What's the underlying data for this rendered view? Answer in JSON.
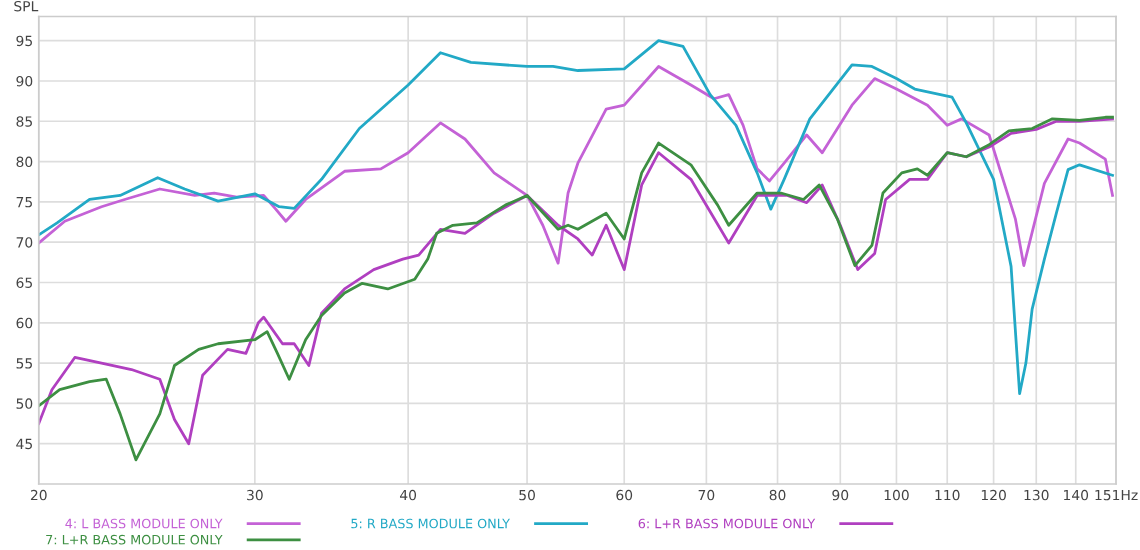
{
  "chart_data": {
    "type": "line",
    "ylabel": "SPL",
    "log": "x",
    "grid": true,
    "legend": "bottom",
    "xlim": [
      20,
      151
    ],
    "ylim": [
      40,
      98
    ],
    "xticks": [
      20,
      30,
      40,
      50,
      60,
      70,
      80,
      90,
      100,
      110,
      120,
      130,
      140,
      {
        "value": 151,
        "label": "151Hz"
      }
    ],
    "yticks": [
      45,
      50,
      55,
      60,
      65,
      70,
      75,
      80,
      85,
      90,
      95
    ],
    "series": [
      {
        "name": "4: L BASS MODULE ONLY",
        "color": "#c462d6",
        "x": [
          20,
          21,
          22.5,
          23.5,
          25.1,
          26.8,
          27.8,
          29,
          30.5,
          31.2,
          31.8,
          33,
          35.5,
          38,
          40,
          42.5,
          44.5,
          47,
          50,
          51.5,
          53,
          54,
          55,
          58,
          60,
          64,
          68,
          71,
          73,
          75,
          77,
          78.8,
          81,
          84.5,
          87,
          92,
          96,
          100,
          106,
          110,
          113,
          119,
          125,
          127,
          132,
          138,
          141,
          148,
          150
        ],
        "values": [
          69.9,
          72.6,
          74.4,
          75.3,
          76.6,
          75.8,
          76.1,
          75.6,
          75.8,
          74.1,
          72.6,
          75.3,
          78.8,
          79.1,
          81.1,
          84.8,
          82.8,
          78.6,
          75.8,
          72.1,
          67.4,
          76.1,
          79.8,
          86.5,
          87,
          91.8,
          89.5,
          87.8,
          88.3,
          84.5,
          79.1,
          77.6,
          79.8,
          83.3,
          81.1,
          87,
          90.3,
          89,
          87,
          84.5,
          85.3,
          83.3,
          72.9,
          67.1,
          77.3,
          82.8,
          82.3,
          80.3,
          75.8
        ]
      },
      {
        "name": "5: R BASS MODULE ONLY",
        "color": "#22a9c6",
        "x": [
          20,
          20.7,
          22,
          23.3,
          25,
          26.3,
          28,
          30,
          31.4,
          32.3,
          34,
          36.5,
          40,
          42.5,
          45,
          50,
          52.5,
          55,
          60,
          64,
          67,
          70.5,
          74,
          77,
          79,
          81,
          85,
          92,
          95.5,
          100,
          103.5,
          111,
          114,
          120,
          124,
          126,
          127.5,
          129,
          132,
          135,
          138,
          141,
          150
        ],
        "values": [
          70.9,
          72.4,
          75.3,
          75.8,
          78,
          76.6,
          75.1,
          76,
          74.4,
          74.2,
          77.8,
          84.1,
          89.5,
          93.5,
          92.3,
          91.8,
          91.8,
          91.3,
          91.5,
          95,
          94.3,
          88.3,
          84.5,
          78.6,
          74.1,
          77.8,
          85.3,
          92,
          91.8,
          90.3,
          89,
          88,
          84.8,
          77.8,
          67,
          51.2,
          55,
          61.7,
          67.9,
          73.6,
          79,
          79.6,
          78.3
        ]
      },
      {
        "name": "6: L+R BASS MODULE ONLY",
        "color": "#b03fc0",
        "x": [
          20,
          20.5,
          21.4,
          22.5,
          23.8,
          25.1,
          25.8,
          26.5,
          27.2,
          28.5,
          29.5,
          30.2,
          30.5,
          31.6,
          32.3,
          33.2,
          34,
          35.5,
          37.5,
          39.6,
          40.8,
          42.5,
          44.5,
          47,
          50,
          53,
          55,
          56.5,
          58,
          60,
          62,
          64,
          68,
          73,
          77,
          81.5,
          84.5,
          87,
          90,
          93,
          96,
          98,
          102.5,
          106,
          110,
          114,
          119,
          124,
          130,
          135,
          141,
          150
        ],
        "values": [
          47.5,
          51.7,
          55.7,
          55,
          54.2,
          53,
          48,
          45,
          53.5,
          56.7,
          56.2,
          60,
          60.7,
          57.4,
          57.4,
          54.7,
          61.2,
          64.2,
          66.6,
          67.9,
          68.4,
          71.6,
          71.1,
          73.6,
          75.8,
          72.1,
          70.4,
          68.4,
          72.1,
          66.6,
          77.1,
          81.1,
          77.8,
          69.9,
          75.8,
          75.8,
          74.9,
          77.1,
          72.1,
          66.6,
          68.6,
          75.3,
          77.8,
          77.8,
          81.1,
          80.6,
          81.8,
          83.5,
          84,
          85,
          85,
          85.3
        ]
      },
      {
        "name": "7: L+R BASS MODULE ONLY",
        "color": "#3d8f42",
        "x": [
          20,
          20.8,
          22,
          22.7,
          23.3,
          24,
          25.1,
          25.8,
          27,
          28,
          30,
          30.7,
          31.3,
          32,
          33,
          34,
          35.5,
          36.7,
          38.5,
          40.5,
          41.5,
          42.2,
          43.5,
          45.5,
          48,
          50,
          53,
          54,
          55,
          58,
          60,
          62,
          64,
          68,
          71.5,
          73,
          77,
          80.5,
          84,
          86.5,
          89.5,
          92.5,
          95.5,
          97.5,
          101,
          104,
          106,
          110,
          114,
          119,
          123.5,
          129,
          134,
          141,
          148,
          150
        ],
        "values": [
          49.7,
          51.7,
          52.7,
          53,
          48.7,
          43,
          48.7,
          54.7,
          56.7,
          57.4,
          57.9,
          58.9,
          56.2,
          53,
          57.9,
          60.9,
          63.7,
          64.9,
          64.2,
          65.4,
          67.9,
          71.1,
          72.1,
          72.4,
          74.6,
          75.8,
          71.6,
          72.1,
          71.6,
          73.6,
          70.4,
          78.6,
          82.3,
          79.6,
          74.6,
          72.1,
          76.1,
          76.1,
          75.3,
          77.1,
          72.9,
          67.1,
          69.6,
          76.1,
          78.6,
          79.1,
          78.3,
          81.1,
          80.6,
          82.1,
          83.8,
          84.1,
          85.3,
          85.1,
          85.5,
          85.5
        ]
      }
    ]
  }
}
